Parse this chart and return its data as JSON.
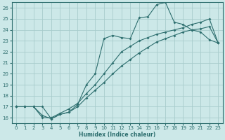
{
  "xlabel": "Humidex (Indice chaleur)",
  "bg_color": "#cce8e8",
  "grid_color": "#a8cccc",
  "line_color": "#2d6e6e",
  "xlim": [
    -0.5,
    23.5
  ],
  "ylim": [
    15.5,
    26.5
  ],
  "xticks": [
    0,
    1,
    2,
    3,
    4,
    5,
    6,
    7,
    8,
    9,
    10,
    11,
    12,
    13,
    14,
    15,
    16,
    17,
    18,
    19,
    20,
    21,
    22,
    23
  ],
  "yticks": [
    16,
    17,
    18,
    19,
    20,
    21,
    22,
    23,
    24,
    25,
    26
  ],
  "line1_x": [
    0,
    1,
    2,
    3,
    4,
    5,
    6,
    7,
    8,
    9,
    10,
    11,
    12,
    13,
    14,
    15,
    16,
    17,
    18,
    19,
    20,
    21,
    22,
    23
  ],
  "line1_y": [
    17.0,
    17.0,
    17.0,
    17.0,
    15.9,
    16.3,
    16.5,
    17.2,
    19.0,
    20.0,
    23.2,
    23.5,
    23.3,
    23.2,
    25.1,
    25.2,
    26.3,
    26.5,
    24.7,
    24.5,
    24.0,
    23.8,
    23.1,
    22.8
  ],
  "line2_x": [
    0,
    1,
    2,
    3,
    4,
    5,
    6,
    7,
    8,
    9,
    10,
    11,
    12,
    13,
    14,
    15,
    16,
    17,
    18,
    19,
    20,
    21,
    22,
    23
  ],
  "line2_y": [
    17.0,
    17.0,
    17.0,
    16.0,
    16.0,
    16.4,
    16.8,
    17.3,
    18.2,
    19.0,
    20.0,
    21.0,
    22.0,
    22.5,
    23.0,
    23.3,
    23.6,
    23.8,
    24.0,
    24.2,
    24.5,
    24.7,
    25.0,
    22.8
  ],
  "line3_x": [
    0,
    1,
    2,
    3,
    4,
    5,
    6,
    7,
    8,
    9,
    10,
    11,
    12,
    13,
    14,
    15,
    16,
    17,
    18,
    19,
    20,
    21,
    22,
    23
  ],
  "line3_y": [
    17.0,
    17.0,
    17.0,
    16.2,
    15.9,
    16.3,
    16.5,
    17.0,
    17.8,
    18.5,
    19.2,
    20.0,
    20.7,
    21.3,
    21.9,
    22.4,
    22.9,
    23.2,
    23.5,
    23.8,
    24.0,
    24.1,
    24.3,
    22.8
  ]
}
